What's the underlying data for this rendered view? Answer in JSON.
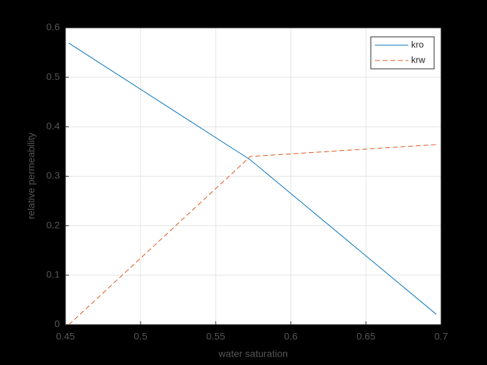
{
  "chart_data": {
    "type": "line",
    "x_label": "water saturation",
    "y_label": "relative permeability",
    "x": [
      0.4523,
      0.5731,
      0.6968
    ],
    "series": [
      {
        "name": "kro",
        "color": "#0072bd",
        "dash": "solid",
        "values": [
          0.569,
          0.333,
          0.021
        ]
      },
      {
        "name": "krw",
        "color": "#d95319",
        "dash": "dashed",
        "values": [
          0,
          0.34,
          0.364
        ]
      }
    ],
    "xlim": [
      0.45,
      0.7
    ],
    "xticks": [
      0.45,
      0.5,
      0.55,
      0.6,
      0.65,
      0.7
    ],
    "ylim": [
      0,
      0.6
    ],
    "yticks": [
      0,
      0.1,
      0.2,
      0.3,
      0.4,
      0.5,
      0.6
    ],
    "grid": true,
    "legend_position": "top-right"
  }
}
